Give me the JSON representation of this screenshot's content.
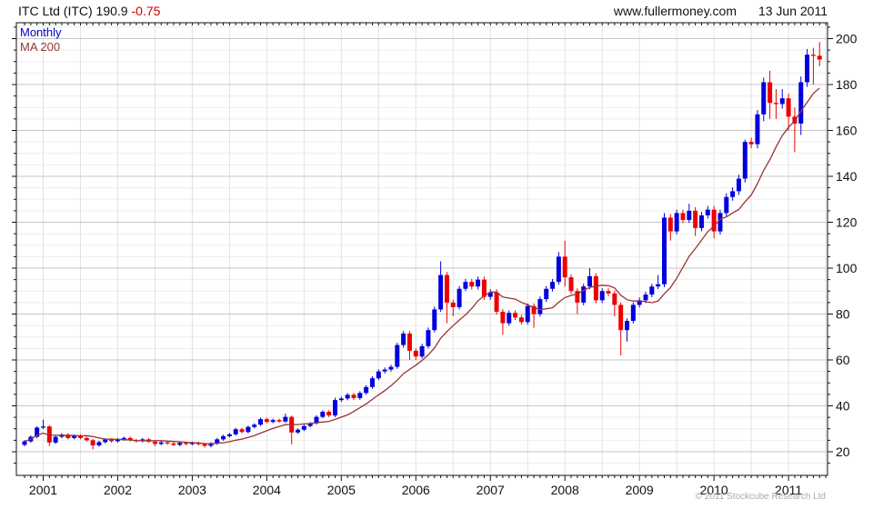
{
  "header": {
    "title": "ITC Ltd (ITC) 190.9",
    "change": "-0.75",
    "site": "www.fullermoney.com",
    "date": "13 Jun 2011"
  },
  "legend": {
    "series_label": "Monthly",
    "ma_label": "MA 200"
  },
  "footer": {
    "copyright": "© 2011 Stockcube Research Ltd"
  },
  "chart_data": {
    "type": "candlestick",
    "title": "ITC Ltd (ITC) monthly candles with 200-day moving average",
    "interval": "monthly",
    "x_start": "2000-10",
    "x_end": "2011-06",
    "last_price": 190.9,
    "change": -0.75,
    "jan_offset": 3,
    "year_labels": [
      "2001",
      "2002",
      "2003",
      "2004",
      "2005",
      "2006",
      "2007",
      "2008",
      "2009",
      "2010",
      "2011"
    ],
    "y_ticks": [
      20,
      40,
      60,
      80,
      100,
      120,
      140,
      160,
      180,
      200
    ],
    "y_minor_step": 5,
    "ylim": [
      10.5,
      207
    ],
    "grid": true,
    "legend_position": "top-left",
    "ma": {
      "label": "MA 200",
      "window": 10,
      "color": "#993333"
    },
    "colors": {
      "up": "#0000dd",
      "down": "#ee0000"
    },
    "candles_format": [
      "open",
      "high",
      "low",
      "close"
    ],
    "candles": [
      [
        23.0,
        25.1,
        22.4,
        24.5
      ],
      [
        24.5,
        27.1,
        23.9,
        26.5
      ],
      [
        26.5,
        31.1,
        25.9,
        30.5
      ],
      [
        30.5,
        34.0,
        29.9,
        31.0
      ],
      [
        31.0,
        31.6,
        22.5,
        24.0
      ],
      [
        24.0,
        27.1,
        23.4,
        26.5
      ],
      [
        26.5,
        28.1,
        25.9,
        27.5
      ],
      [
        27.5,
        28.1,
        25.4,
        26.0
      ],
      [
        26.0,
        27.6,
        25.4,
        27.0
      ],
      [
        27.0,
        27.6,
        25.4,
        26.0
      ],
      [
        26.0,
        26.6,
        24.4,
        25.0
      ],
      [
        25.0,
        25.6,
        21.0,
        22.8
      ],
      [
        22.8,
        24.8,
        22.2,
        24.2
      ],
      [
        24.2,
        25.9,
        23.6,
        25.3
      ],
      [
        25.3,
        25.9,
        24.0,
        24.6
      ],
      [
        24.6,
        26.0,
        24.0,
        25.4
      ],
      [
        25.4,
        26.6,
        24.8,
        26.0
      ],
      [
        26.0,
        26.6,
        24.4,
        25.0
      ],
      [
        25.0,
        25.6,
        24.0,
        24.6
      ],
      [
        24.6,
        26.0,
        24.0,
        25.4
      ],
      [
        25.4,
        26.0,
        23.8,
        24.4
      ],
      [
        24.4,
        25.0,
        22.4,
        23.4
      ],
      [
        23.4,
        24.7,
        22.8,
        24.1
      ],
      [
        24.1,
        24.7,
        23.0,
        23.6
      ],
      [
        23.6,
        24.2,
        22.4,
        23.0
      ],
      [
        23.0,
        24.5,
        22.4,
        23.9
      ],
      [
        23.9,
        24.5,
        22.8,
        23.4
      ],
      [
        23.4,
        24.4,
        22.8,
        23.8
      ],
      [
        23.8,
        24.4,
        22.7,
        23.3
      ],
      [
        23.3,
        23.9,
        21.8,
        22.6
      ],
      [
        22.6,
        24.2,
        22.0,
        23.6
      ],
      [
        23.6,
        26.0,
        23.0,
        25.4
      ],
      [
        25.4,
        27.4,
        24.8,
        26.8
      ],
      [
        26.8,
        28.2,
        26.2,
        27.6
      ],
      [
        27.6,
        30.4,
        27.0,
        29.8
      ],
      [
        29.8,
        30.4,
        28.0,
        28.6
      ],
      [
        28.6,
        31.4,
        28.0,
        30.8
      ],
      [
        30.8,
        32.4,
        30.2,
        31.8
      ],
      [
        31.8,
        34.9,
        31.2,
        34.2
      ],
      [
        34.2,
        34.9,
        32.4,
        33.0
      ],
      [
        33.0,
        34.4,
        32.4,
        33.8
      ],
      [
        33.8,
        34.4,
        32.6,
        33.2
      ],
      [
        33.2,
        36.6,
        32.6,
        35.2
      ],
      [
        35.2,
        35.8,
        23.2,
        28.4
      ],
      [
        28.4,
        30.2,
        27.8,
        29.6
      ],
      [
        29.6,
        31.8,
        29.0,
        31.2
      ],
      [
        31.2,
        33.0,
        30.6,
        32.4
      ],
      [
        32.4,
        35.9,
        31.8,
        35.2
      ],
      [
        35.2,
        38.1,
        34.6,
        37.4
      ],
      [
        37.4,
        38.1,
        35.1,
        35.8
      ],
      [
        35.8,
        43.5,
        35.1,
        42.5
      ],
      [
        42.5,
        44.0,
        41.7,
        43.2
      ],
      [
        43.2,
        45.6,
        42.4,
        44.8
      ],
      [
        44.8,
        45.6,
        42.6,
        43.4
      ],
      [
        43.4,
        46.4,
        42.6,
        45.6
      ],
      [
        45.6,
        49.0,
        44.8,
        48.2
      ],
      [
        48.2,
        52.9,
        47.4,
        52.0
      ],
      [
        52.0,
        55.9,
        51.2,
        55.0
      ],
      [
        55.0,
        56.7,
        54.1,
        55.8
      ],
      [
        55.8,
        57.9,
        54.9,
        57.0
      ],
      [
        57.0,
        67.5,
        56.1,
        66.5
      ],
      [
        66.5,
        72.6,
        65.4,
        71.5
      ],
      [
        71.5,
        72.6,
        60.0,
        64.0
      ],
      [
        64.0,
        65.0,
        60.0,
        61.5
      ],
      [
        61.5,
        67.0,
        60.6,
        66.0
      ],
      [
        66.0,
        74.1,
        65.0,
        73.0
      ],
      [
        73.0,
        83.2,
        72.0,
        82.0
      ],
      [
        82.0,
        103.0,
        81.0,
        97.0
      ],
      [
        97.0,
        98.3,
        76.0,
        85.0
      ],
      [
        85.0,
        86.2,
        79.0,
        83.0
      ],
      [
        83.0,
        92.2,
        82.0,
        91.0
      ],
      [
        91.0,
        95.3,
        90.0,
        94.0
      ],
      [
        94.0,
        95.3,
        90.7,
        92.0
      ],
      [
        92.0,
        96.3,
        90.7,
        95.0
      ],
      [
        95.0,
        96.3,
        86.2,
        87.5
      ],
      [
        87.5,
        90.8,
        86.2,
        89.5
      ],
      [
        89.5,
        90.8,
        79.8,
        81.0
      ],
      [
        81.0,
        82.1,
        71.0,
        76.0
      ],
      [
        76.0,
        81.6,
        74.9,
        80.5
      ],
      [
        80.5,
        81.6,
        77.4,
        78.5
      ],
      [
        78.5,
        79.6,
        75.4,
        76.5
      ],
      [
        76.5,
        84.6,
        75.4,
        83.5
      ],
      [
        83.5,
        84.6,
        74.0,
        80.0
      ],
      [
        80.0,
        87.7,
        78.9,
        86.5
      ],
      [
        86.5,
        92.2,
        85.3,
        91.0
      ],
      [
        91.0,
        95.3,
        89.8,
        94.0
      ],
      [
        94.0,
        107.0,
        92.8,
        105.0
      ],
      [
        105.0,
        112.0,
        92.0,
        96.0
      ],
      [
        96.0,
        97.3,
        88.7,
        90.0
      ],
      [
        90.0,
        91.2,
        80.0,
        85.0
      ],
      [
        85.0,
        93.2,
        83.8,
        92.0
      ],
      [
        92.0,
        100.0,
        90.8,
        96.5
      ],
      [
        96.5,
        97.8,
        84.7,
        86.0
      ],
      [
        86.0,
        91.2,
        84.8,
        90.0
      ],
      [
        90.0,
        91.2,
        87.8,
        89.0
      ],
      [
        89.0,
        90.2,
        79.0,
        84.0
      ],
      [
        84.0,
        85.1,
        62.0,
        73.0
      ],
      [
        73.0,
        78.1,
        68.0,
        77.0
      ],
      [
        77.0,
        85.1,
        75.9,
        84.0
      ],
      [
        84.0,
        87.2,
        82.9,
        86.0
      ],
      [
        86.0,
        89.7,
        84.8,
        88.5
      ],
      [
        88.5,
        93.2,
        87.3,
        92.0
      ],
      [
        92.0,
        97.0,
        90.8,
        93.0
      ],
      [
        93.0,
        124.0,
        91.7,
        122.0
      ],
      [
        122.0,
        123.5,
        112.0,
        116.0
      ],
      [
        116.0,
        125.5,
        114.7,
        124.0
      ],
      [
        124.0,
        125.5,
        119.6,
        121.0
      ],
      [
        121.0,
        128.0,
        119.7,
        125.0
      ],
      [
        125.0,
        126.6,
        114.0,
        117.5
      ],
      [
        117.5,
        124.5,
        116.1,
        123.0
      ],
      [
        123.0,
        127.1,
        121.6,
        125.5
      ],
      [
        125.5,
        127.1,
        113.0,
        116.0
      ],
      [
        116.0,
        125.5,
        114.6,
        124.0
      ],
      [
        124.0,
        132.6,
        122.5,
        131.0
      ],
      [
        131.0,
        135.2,
        129.4,
        133.5
      ],
      [
        133.5,
        140.7,
        131.9,
        139.0
      ],
      [
        139.0,
        156.0,
        137.3,
        155.0
      ],
      [
        155.0,
        156.9,
        152.2,
        154.0
      ],
      [
        154.0,
        168.9,
        152.2,
        167.0
      ],
      [
        167.0,
        183.0,
        164.0,
        181.0
      ],
      [
        181.0,
        186.0,
        165.0,
        172.0
      ],
      [
        172.0,
        178.0,
        165.0,
        171.5
      ],
      [
        171.5,
        178.0,
        169.5,
        174.0
      ],
      [
        174.0,
        176.0,
        160.0,
        166.0
      ],
      [
        166.0,
        170.0,
        150.5,
        163.0
      ],
      [
        163.0,
        183.5,
        158.0,
        181.0
      ],
      [
        181.0,
        195.5,
        179.0,
        193.0
      ],
      [
        193.0,
        196.0,
        180.0,
        192.5
      ],
      [
        192.5,
        198.5,
        188.0,
        190.9
      ]
    ]
  }
}
